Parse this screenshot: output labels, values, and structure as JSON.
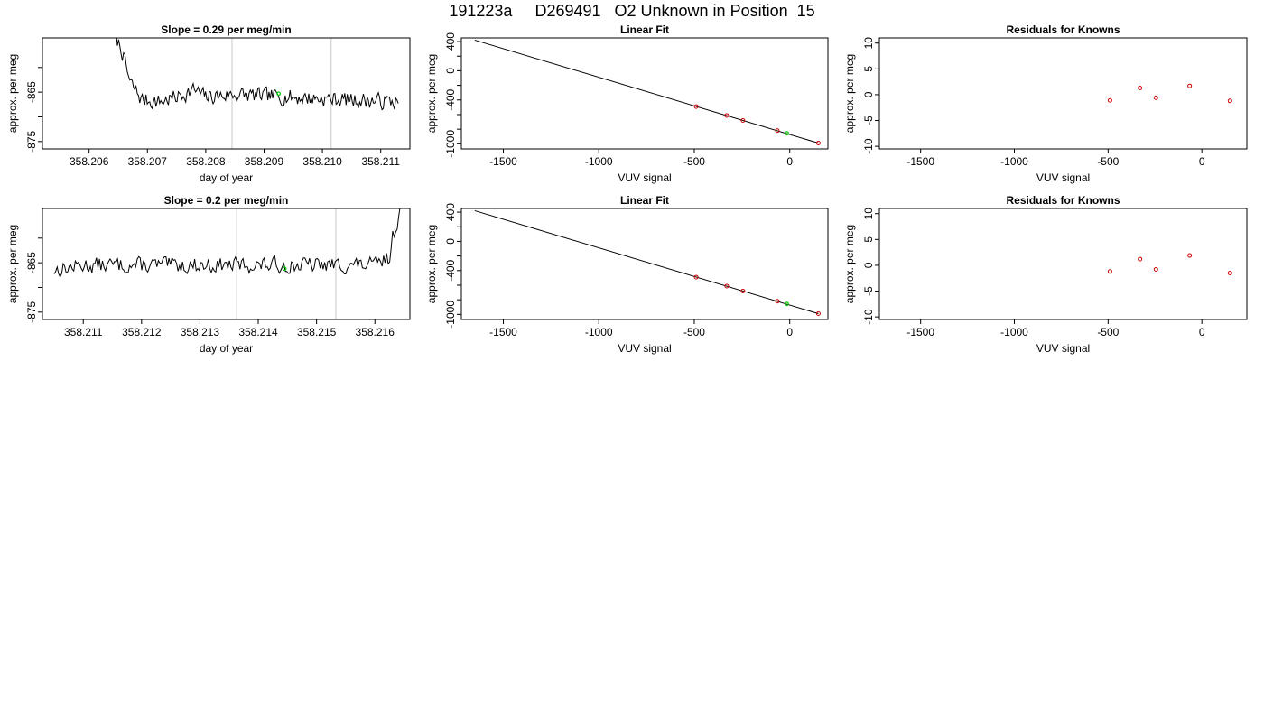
{
  "main_title": "191223a     D269491   O2 Unknown in Position  15",
  "colors": {
    "line": "#000000",
    "known_point": "#cc0000",
    "unknown_point": "#00cc00",
    "marker_line": "#c8c8c8"
  },
  "chart_data": [
    {
      "id": "ts1",
      "type": "line",
      "title": "Slope =  0.29  per meg/min",
      "xlabel": "day of year",
      "ylabel": "approx. per meg",
      "xlim": [
        358.2052,
        358.2115
      ],
      "ylim": [
        -876.5,
        -854
      ],
      "xticks": [
        358.206,
        358.207,
        358.208,
        358.209,
        358.21,
        358.211
      ],
      "xtick_labels": [
        "358.206",
        "358.207",
        "358.208",
        "358.209",
        "358.210",
        "358.211"
      ],
      "yticks": [
        -875,
        -870,
        -865,
        -860
      ],
      "ytick_labels": [
        "-875",
        "",
        "-865",
        ""
      ],
      "markers": [
        358.20845,
        358.21015
      ],
      "series": [
        {
          "x_start": 358.2064,
          "x_end": 358.2113,
          "seed": 7,
          "anchors": [
            [
              358.2064,
              -853
            ],
            [
              358.20655,
              -856
            ],
            [
              358.2067,
              -863
            ],
            [
              358.2069,
              -866.5
            ],
            [
              358.2072,
              -867
            ],
            [
              358.2075,
              -866
            ],
            [
              358.2078,
              -864.5
            ],
            [
              358.208,
              -866
            ],
            [
              358.2085,
              -865.5
            ],
            [
              358.2113,
              -867
            ]
          ]
        }
      ],
      "unknown_points": [
        {
          "x": 358.20925,
          "y": -865.3
        }
      ]
    },
    {
      "id": "fit1",
      "type": "scatter",
      "title": "Linear Fit",
      "xlabel": "VUV signal",
      "ylabel": "approx. per meg",
      "xlim": [
        -1720,
        200
      ],
      "ylim": [
        -1070,
        450
      ],
      "xticks": [
        -1500,
        -1000,
        -500,
        0
      ],
      "xtick_labels": [
        "-1500",
        "-1000",
        "-500",
        "0"
      ],
      "yticks": [
        400,
        200,
        0,
        -200,
        -400,
        -600,
        -800,
        -1000
      ],
      "ytick_labels": [
        "400",
        "",
        "0",
        "",
        "-400",
        "",
        "",
        "-1000"
      ],
      "fit_line": [
        [
          -1650,
          420
        ],
        [
          150,
          -990
        ]
      ],
      "known_points": [
        [
          -490,
          -490
        ],
        [
          -330,
          -612
        ],
        [
          -245,
          -680
        ],
        [
          -65,
          -820
        ],
        [
          150,
          -990
        ]
      ],
      "unknown_points": [
        [
          -15,
          -856
        ]
      ]
    },
    {
      "id": "res1",
      "type": "scatter",
      "title": "Residuals for Knowns",
      "xlabel": "VUV signal",
      "ylabel": "approx. per meg",
      "xlim": [
        -1720,
        240
      ],
      "ylim": [
        -10.5,
        11
      ],
      "xticks": [
        -1500,
        -1000,
        -500,
        0
      ],
      "xtick_labels": [
        "-1500",
        "-1000",
        "-500",
        "0"
      ],
      "yticks": [
        10,
        5,
        0,
        -5,
        -10
      ],
      "ytick_labels": [
        "10",
        "5",
        "0",
        "-5",
        "-10"
      ],
      "known_points": [
        [
          -490,
          -1.1
        ],
        [
          -330,
          1.3
        ],
        [
          -245,
          -0.6
        ],
        [
          -65,
          1.7
        ],
        [
          150,
          -1.2
        ]
      ]
    },
    {
      "id": "ts2",
      "type": "line",
      "title": "Slope =  0.2  per meg/min",
      "xlabel": "day of year",
      "ylabel": "approx. per meg",
      "xlim": [
        358.2103,
        358.2166
      ],
      "ylim": [
        -876.5,
        -854
      ],
      "xticks": [
        358.211,
        358.212,
        358.213,
        358.214,
        358.215,
        358.216
      ],
      "xtick_labels": [
        "358.211",
        "358.212",
        "358.213",
        "358.214",
        "358.215",
        "358.216"
      ],
      "yticks": [
        -875,
        -870,
        -865,
        -860
      ],
      "ytick_labels": [
        "-875",
        "",
        "-865",
        ""
      ],
      "markers": [
        358.21363,
        358.21533
      ],
      "series": [
        {
          "x_start": 358.2105,
          "x_end": 358.21646,
          "seed": 13,
          "anchors": [
            [
              358.2105,
              -866.5
            ],
            [
              358.211,
              -865.5
            ],
            [
              358.2125,
              -865.5
            ],
            [
              358.216,
              -865.5
            ],
            [
              358.21625,
              -864
            ],
            [
              358.2163,
              -860
            ],
            [
              358.21646,
              -853
            ]
          ]
        }
      ],
      "unknown_points": [
        {
          "x": 358.21445,
          "y": -866.2
        }
      ]
    },
    {
      "id": "fit2",
      "type": "scatter",
      "title": "Linear Fit",
      "xlabel": "VUV signal",
      "ylabel": "approx. per meg",
      "xlim": [
        -1720,
        200
      ],
      "ylim": [
        -1070,
        450
      ],
      "xticks": [
        -1500,
        -1000,
        -500,
        0
      ],
      "xtick_labels": [
        "-1500",
        "-1000",
        "-500",
        "0"
      ],
      "yticks": [
        400,
        200,
        0,
        -200,
        -400,
        -600,
        -800,
        -1000
      ],
      "ytick_labels": [
        "400",
        "",
        "0",
        "",
        "-400",
        "",
        "",
        "-1000"
      ],
      "fit_line": [
        [
          -1650,
          420
        ],
        [
          150,
          -990
        ]
      ],
      "known_points": [
        [
          -490,
          -490
        ],
        [
          -330,
          -612
        ],
        [
          -245,
          -680
        ],
        [
          -65,
          -820
        ],
        [
          150,
          -990
        ]
      ],
      "unknown_points": [
        [
          -15,
          -856
        ]
      ]
    },
    {
      "id": "res2",
      "type": "scatter",
      "title": "Residuals for Knowns",
      "xlabel": "VUV signal",
      "ylabel": "approx. per meg",
      "xlim": [
        -1720,
        240
      ],
      "ylim": [
        -10.5,
        11
      ],
      "xticks": [
        -1500,
        -1000,
        -500,
        0
      ],
      "xtick_labels": [
        "-1500",
        "-1000",
        "-500",
        "0"
      ],
      "yticks": [
        10,
        5,
        0,
        -5,
        -10
      ],
      "ytick_labels": [
        "10",
        "5",
        "0",
        "-5",
        "-10"
      ],
      "known_points": [
        [
          -490,
          -1.2
        ],
        [
          -330,
          1.2
        ],
        [
          -245,
          -0.8
        ],
        [
          -65,
          1.9
        ],
        [
          150,
          -1.5
        ]
      ]
    }
  ]
}
